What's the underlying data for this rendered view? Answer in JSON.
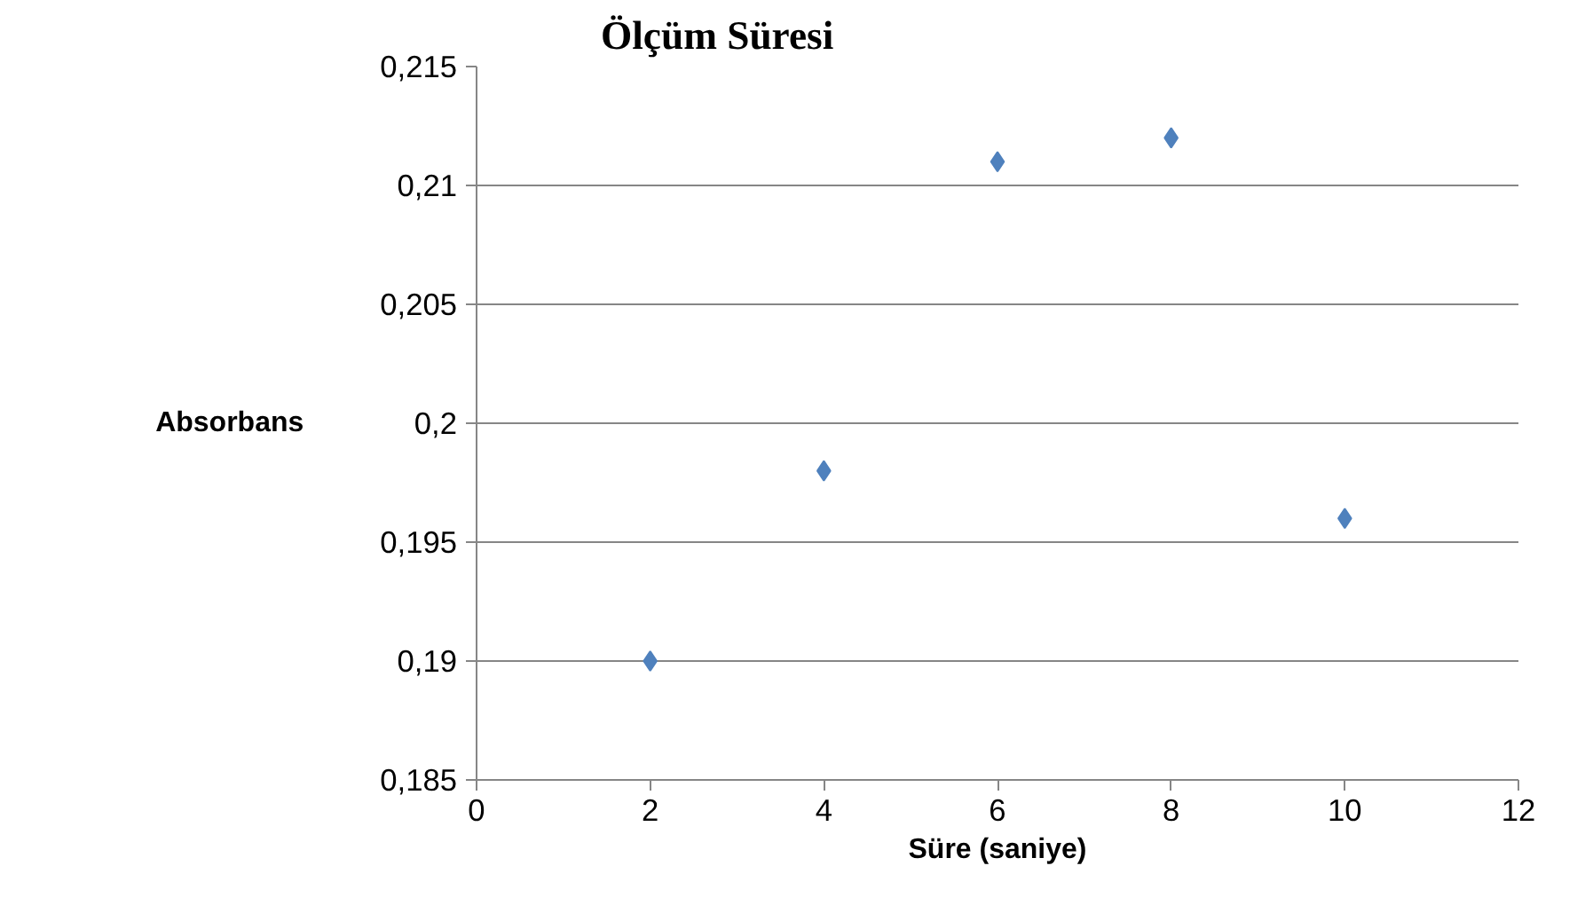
{
  "chart_data": {
    "type": "scatter",
    "title": "Ölçüm Süresi",
    "xlabel": "Süre (saniye)",
    "ylabel": "Absorbans",
    "x": [
      2,
      4,
      6,
      8,
      10
    ],
    "series": [
      {
        "color": "#4f81bd",
        "values": [
          0.19,
          0.198,
          0.211,
          0.212,
          0.196
        ]
      }
    ],
    "xlim": [
      0,
      12
    ],
    "xticks": [
      0,
      2,
      4,
      6,
      8,
      10,
      12
    ],
    "ylim": [
      0.185,
      0.215
    ],
    "yticks": [
      {
        "value": 0.185,
        "label": "0,185"
      },
      {
        "value": 0.19,
        "label": "0,19"
      },
      {
        "value": 0.195,
        "label": "0,195"
      },
      {
        "value": 0.2,
        "label": "0,2"
      },
      {
        "value": 0.205,
        "label": "0,205"
      },
      {
        "value": 0.21,
        "label": "0,21"
      },
      {
        "value": 0.215,
        "label": "0,215"
      }
    ],
    "grid": "y",
    "marker": "diamond"
  }
}
